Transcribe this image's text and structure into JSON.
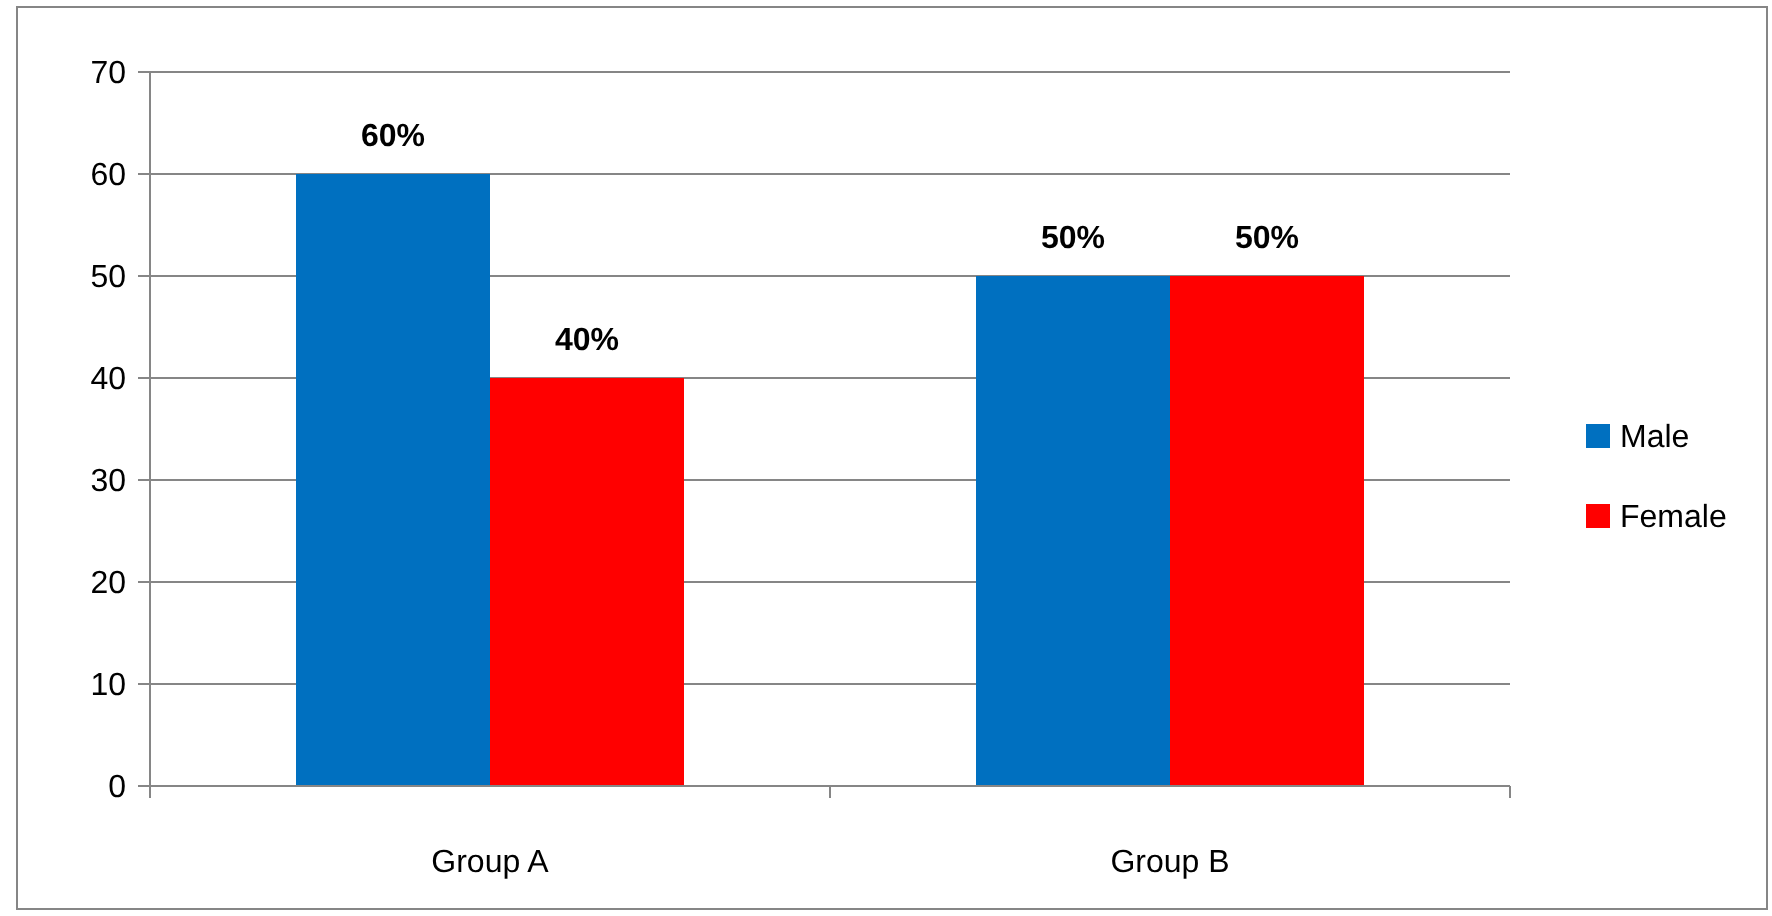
{
  "chart_data": {
    "type": "bar",
    "categories": [
      "Group A",
      "Group B"
    ],
    "series": [
      {
        "name": "Male",
        "color": "#0070c0",
        "values": [
          60,
          50
        ],
        "value_labels": [
          "60%",
          "50%"
        ]
      },
      {
        "name": "Female",
        "color": "#ff0000",
        "values": [
          40,
          50
        ],
        "value_labels": [
          "40%",
          "50%"
        ]
      }
    ],
    "ylim": [
      0,
      70
    ],
    "yticks": [
      0,
      10,
      20,
      30,
      40,
      50,
      60,
      70
    ],
    "grid": "y",
    "legend": "right"
  }
}
